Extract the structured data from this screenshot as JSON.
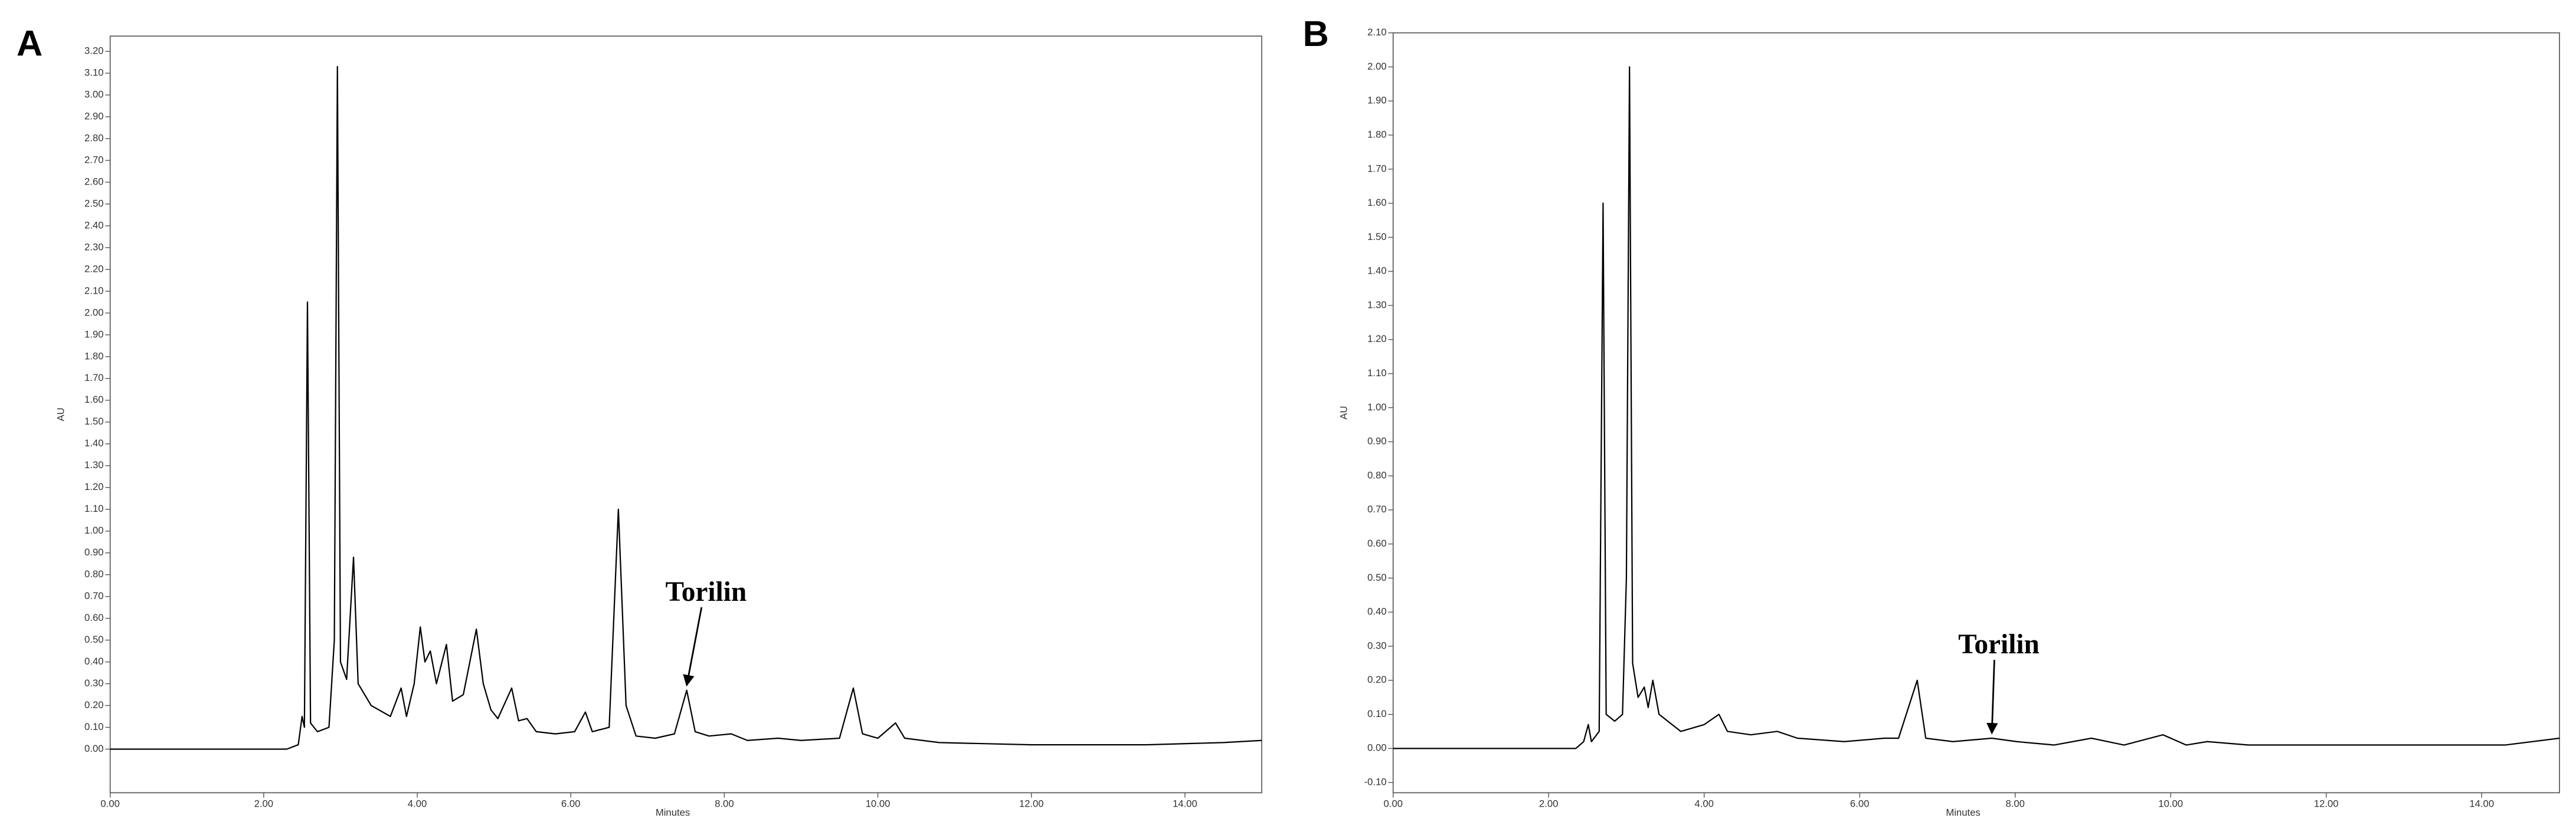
{
  "chart_data": [
    {
      "type": "line",
      "panel_label": "A",
      "y_label": "AU",
      "x_label": "Minutes",
      "annotation": "Torilin",
      "xlim": [
        0,
        15
      ],
      "ylim": [
        -0.2,
        3.27
      ],
      "xticks": [
        {
          "value": 0,
          "label": "0.00"
        },
        {
          "value": 2,
          "label": "2.00"
        },
        {
          "value": 4,
          "label": "4.00"
        },
        {
          "value": 6,
          "label": "6.00"
        },
        {
          "value": 8,
          "label": "8.00"
        },
        {
          "value": 10,
          "label": "10.00"
        },
        {
          "value": 12,
          "label": "12.00"
        },
        {
          "value": 14,
          "label": "14.00"
        }
      ],
      "yticks": [
        {
          "value": 0,
          "label": "0.00"
        },
        {
          "value": 0.1,
          "label": "0.10"
        },
        {
          "value": 0.2,
          "label": "0.20"
        },
        {
          "value": 0.3,
          "label": "0.30"
        },
        {
          "value": 0.4,
          "label": "0.40"
        },
        {
          "value": 0.5,
          "label": "0.50"
        },
        {
          "value": 0.6,
          "label": "0.60"
        },
        {
          "value": 0.7,
          "label": "0.70"
        },
        {
          "value": 0.8,
          "label": "0.80"
        },
        {
          "value": 0.9,
          "label": "0.90"
        },
        {
          "value": 1,
          "label": "1.00"
        },
        {
          "value": 1.1,
          "label": "1.10"
        },
        {
          "value": 1.2,
          "label": "1.20"
        },
        {
          "value": 1.3,
          "label": "1.30"
        },
        {
          "value": 1.4,
          "label": "1.40"
        },
        {
          "value": 1.5,
          "label": "1.50"
        },
        {
          "value": 1.6,
          "label": "1.60"
        },
        {
          "value": 1.7,
          "label": "1.70"
        },
        {
          "value": 1.8,
          "label": "1.80"
        },
        {
          "value": 1.9,
          "label": "1.90"
        },
        {
          "value": 2,
          "label": "2.00"
        },
        {
          "value": 2.1,
          "label": "2.10"
        },
        {
          "value": 2.2,
          "label": "2.20"
        },
        {
          "value": 2.3,
          "label": "2.30"
        },
        {
          "value": 2.4,
          "label": "2.40"
        },
        {
          "value": 2.5,
          "label": "2.50"
        },
        {
          "value": 2.6,
          "label": "2.60"
        },
        {
          "value": 2.7,
          "label": "2.70"
        },
        {
          "value": 2.8,
          "label": "2.80"
        },
        {
          "value": 2.9,
          "label": "2.90"
        },
        {
          "value": 3,
          "label": "3.00"
        },
        {
          "value": 3.1,
          "label": "3.10"
        },
        {
          "value": 3.2,
          "label": "3.20"
        }
      ],
      "series": [
        {
          "color": "#000000",
          "x": [
            0,
            2.3,
            2.45,
            2.5,
            2.53,
            2.57,
            2.61,
            2.7,
            2.85,
            2.92,
            2.96,
            3.0,
            3.08,
            3.17,
            3.23,
            3.4,
            3.65,
            3.79,
            3.86,
            3.96,
            4.04,
            4.1,
            4.17,
            4.25,
            4.38,
            4.46,
            4.6,
            4.77,
            4.86,
            4.96,
            5.05,
            5.23,
            5.32,
            5.43,
            5.55,
            5.8,
            6.05,
            6.19,
            6.28,
            6.5,
            6.62,
            6.72,
            6.85,
            7.1,
            7.35,
            7.51,
            7.62,
            7.8,
            8.09,
            8.3,
            8.7,
            9.0,
            9.5,
            9.68,
            9.8,
            10.0,
            10.23,
            10.35,
            10.8,
            12,
            13.5,
            14.5,
            15
          ],
          "values": [
            0,
            0,
            0.02,
            0.15,
            0.1,
            2.05,
            0.12,
            0.08,
            0.1,
            0.5,
            3.13,
            0.4,
            0.32,
            0.88,
            0.3,
            0.2,
            0.15,
            0.28,
            0.15,
            0.3,
            0.56,
            0.4,
            0.45,
            0.3,
            0.48,
            0.22,
            0.25,
            0.55,
            0.3,
            0.18,
            0.14,
            0.28,
            0.13,
            0.14,
            0.08,
            0.07,
            0.08,
            0.17,
            0.08,
            0.1,
            1.1,
            0.2,
            0.06,
            0.05,
            0.07,
            0.27,
            0.08,
            0.06,
            0.07,
            0.04,
            0.05,
            0.04,
            0.05,
            0.28,
            0.07,
            0.05,
            0.12,
            0.05,
            0.03,
            0.02,
            0.02,
            0.03,
            0.04
          ]
        }
      ]
    },
    {
      "type": "line",
      "panel_label": "B",
      "y_label": "AU",
      "x_label": "Minutes",
      "annotation": "Torilin",
      "xlim": [
        0,
        15
      ],
      "ylim": [
        -0.13,
        2.1
      ],
      "xticks": [
        {
          "value": 0,
          "label": "0.00"
        },
        {
          "value": 2,
          "label": "2.00"
        },
        {
          "value": 4,
          "label": "4.00"
        },
        {
          "value": 6,
          "label": "6.00"
        },
        {
          "value": 8,
          "label": "8.00"
        },
        {
          "value": 10,
          "label": "10.00"
        },
        {
          "value": 12,
          "label": "12.00"
        },
        {
          "value": 14,
          "label": "14.00"
        }
      ],
      "yticks": [
        {
          "value": -0.1,
          "label": "-0.10"
        },
        {
          "value": 0,
          "label": "0.00"
        },
        {
          "value": 0.1,
          "label": "0.10"
        },
        {
          "value": 0.2,
          "label": "0.20"
        },
        {
          "value": 0.3,
          "label": "0.30"
        },
        {
          "value": 0.4,
          "label": "0.40"
        },
        {
          "value": 0.5,
          "label": "0.50"
        },
        {
          "value": 0.6,
          "label": "0.60"
        },
        {
          "value": 0.7,
          "label": "0.70"
        },
        {
          "value": 0.8,
          "label": "0.80"
        },
        {
          "value": 0.9,
          "label": "0.90"
        },
        {
          "value": 1,
          "label": "1.00"
        },
        {
          "value": 1.1,
          "label": "1.10"
        },
        {
          "value": 1.2,
          "label": "1.20"
        },
        {
          "value": 1.3,
          "label": "1.30"
        },
        {
          "value": 1.4,
          "label": "1.40"
        },
        {
          "value": 1.5,
          "label": "1.50"
        },
        {
          "value": 1.6,
          "label": "1.60"
        },
        {
          "value": 1.7,
          "label": "1.70"
        },
        {
          "value": 1.8,
          "label": "1.80"
        },
        {
          "value": 1.9,
          "label": "1.90"
        },
        {
          "value": 2,
          "label": "2.00"
        },
        {
          "value": 2.1,
          "label": "2.10"
        }
      ],
      "series": [
        {
          "color": "#000000",
          "x": [
            0,
            2.35,
            2.45,
            2.51,
            2.55,
            2.65,
            2.7,
            2.74,
            2.85,
            2.95,
            3.0,
            3.04,
            3.08,
            3.15,
            3.23,
            3.28,
            3.34,
            3.42,
            3.7,
            4.0,
            4.19,
            4.3,
            4.6,
            4.94,
            5.2,
            5.8,
            6.32,
            6.5,
            6.74,
            6.85,
            7.2,
            7.7,
            8.02,
            8.5,
            8.98,
            9.4,
            9.9,
            10.2,
            10.47,
            11,
            13,
            14.3,
            15
          ],
          "values": [
            0,
            0,
            0.02,
            0.07,
            0.02,
            0.05,
            1.6,
            0.1,
            0.08,
            0.1,
            0.5,
            2.0,
            0.25,
            0.15,
            0.18,
            0.12,
            0.2,
            0.1,
            0.05,
            0.07,
            0.1,
            0.05,
            0.04,
            0.05,
            0.03,
            0.02,
            0.03,
            0.03,
            0.2,
            0.03,
            0.02,
            0.03,
            0.02,
            0.01,
            0.03,
            0.01,
            0.04,
            0.01,
            0.02,
            0.01,
            0.01,
            0.01,
            0.03
          ]
        }
      ]
    }
  ]
}
